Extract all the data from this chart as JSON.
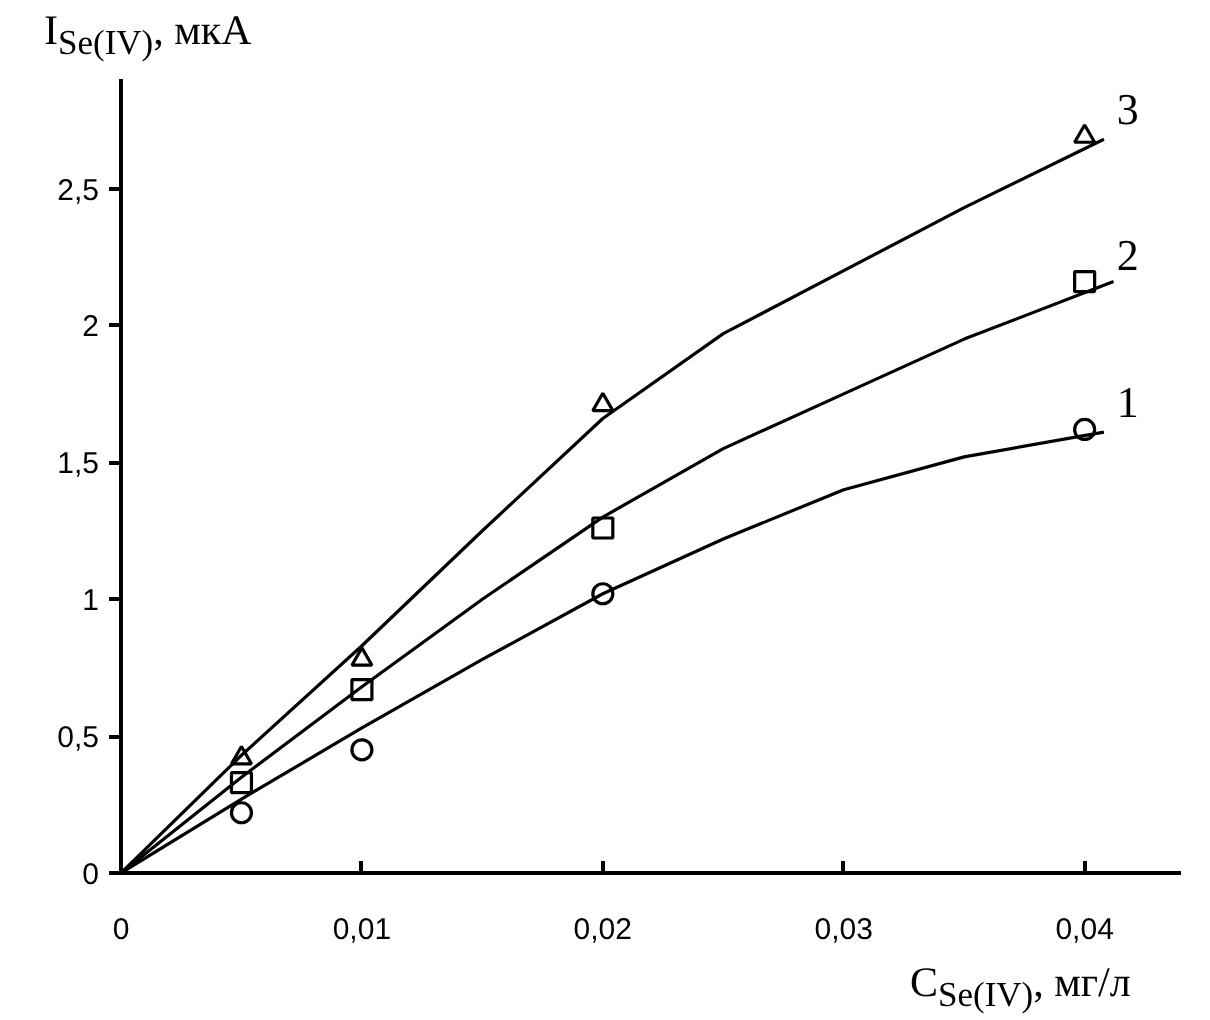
{
  "chart_data": {
    "type": "scatter",
    "xlabel": "C$_{Se(IV)}$, мг/л",
    "ylabel": "I$_{Se(IV)}$, мкА",
    "xlim": [
      0,
      0.044
    ],
    "ylim": [
      0,
      2.9
    ],
    "xticks": [
      {
        "value": 0,
        "label": "0"
      },
      {
        "value": 0.01,
        "label": "0,01"
      },
      {
        "value": 0.02,
        "label": "0,02"
      },
      {
        "value": 0.03,
        "label": "0,03"
      },
      {
        "value": 0.04,
        "label": "0,04"
      }
    ],
    "yticks": [
      {
        "value": 0,
        "label": "0"
      },
      {
        "value": 0.5,
        "label": "0,5"
      },
      {
        "value": 1,
        "label": "1"
      },
      {
        "value": 1.5,
        "label": "1,5"
      },
      {
        "value": 2,
        "label": "2"
      },
      {
        "value": 2.5,
        "label": "2,5"
      }
    ],
    "grid": false,
    "series": [
      {
        "name": "1",
        "type": "scatter",
        "marker": "circle",
        "color": "#000000",
        "x": [
          0.005,
          0.01,
          0.02,
          0.04
        ],
        "values": [
          0.22,
          0.45,
          1.02,
          1.62
        ]
      },
      {
        "name": "2",
        "type": "scatter",
        "marker": "square",
        "color": "#000000",
        "x": [
          0.005,
          0.01,
          0.02,
          0.04
        ],
        "values": [
          0.33,
          0.67,
          1.26,
          2.16
        ]
      },
      {
        "name": "3",
        "type": "scatter",
        "marker": "triangle",
        "color": "#000000",
        "x": [
          0.005,
          0.01,
          0.02,
          0.04
        ],
        "values": [
          0.42,
          0.78,
          1.71,
          2.69
        ]
      },
      {
        "type": "line",
        "marker": "none",
        "color": "#000000",
        "x": [
          0,
          0.005,
          0.01,
          0.015,
          0.02,
          0.025,
          0.03,
          0.035,
          0.0408
        ],
        "values": [
          0,
          0.27,
          0.53,
          0.78,
          1.02,
          1.22,
          1.4,
          1.52,
          1.61
        ]
      },
      {
        "type": "line",
        "marker": "none",
        "color": "#000000",
        "x": [
          0,
          0.005,
          0.01,
          0.015,
          0.02,
          0.025,
          0.03,
          0.035,
          0.0412
        ],
        "values": [
          0,
          0.35,
          0.68,
          1.0,
          1.3,
          1.55,
          1.75,
          1.95,
          2.16
        ]
      },
      {
        "type": "line",
        "marker": "none",
        "color": "#000000",
        "x": [
          0,
          0.005,
          0.01,
          0.015,
          0.02,
          0.025,
          0.03,
          0.035,
          0.0408
        ],
        "values": [
          0,
          0.43,
          0.83,
          1.25,
          1.66,
          1.97,
          2.2,
          2.43,
          2.68
        ]
      }
    ]
  }
}
